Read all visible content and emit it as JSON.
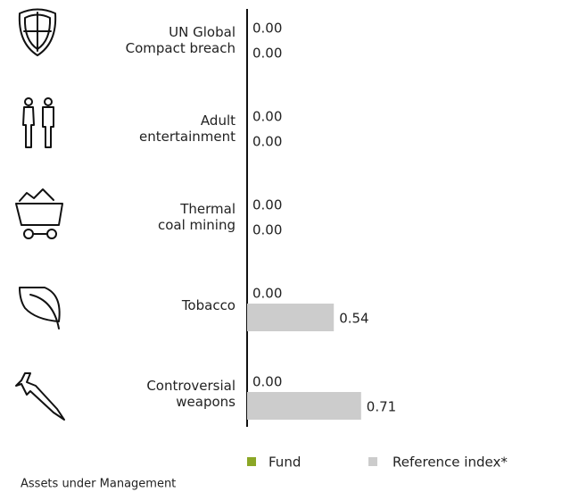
{
  "chart_data": {
    "type": "bar",
    "orientation": "horizontal",
    "categories": [
      "UN Global Compact breach",
      "Adult entertainment",
      "Thermal coal mining",
      "Tobacco",
      "Controversial weapons"
    ],
    "series": [
      {
        "name": "Fund",
        "color": "#8ba726",
        "values": [
          0,
          0,
          0,
          0,
          0
        ],
        "value_labels": [
          "0.00",
          "0.00",
          "0.00",
          "0.00",
          "0.00"
        ]
      },
      {
        "name": "Reference index*",
        "color": "#cccccc",
        "values": [
          0,
          0,
          0,
          0.54,
          0.71
        ],
        "value_labels": [
          "0.00",
          "0.00",
          "0.00",
          "0.54",
          "0.71"
        ]
      }
    ],
    "xlim": [
      0,
      1
    ],
    "note": "Assets under Management"
  }
}
